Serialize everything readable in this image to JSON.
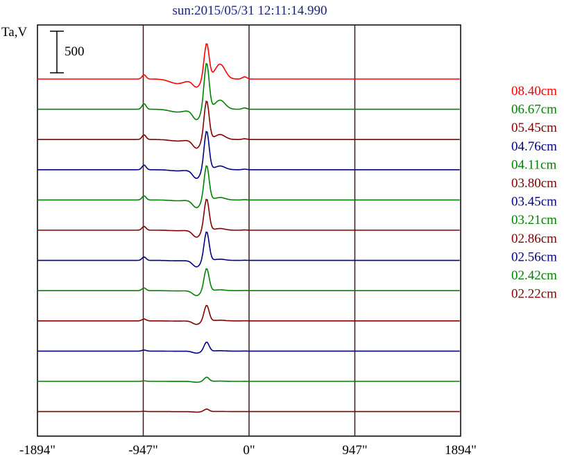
{
  "chart_data": {
    "type": "line",
    "title": "sun:2015/05/31 12:11:14.990",
    "ylabel": "Ta,V",
    "xlabel": "",
    "xlim": [
      -1894,
      1894
    ],
    "xticks": [
      {
        "value": -1894,
        "label": "-1894\""
      },
      {
        "value": -947,
        "label": "-947\""
      },
      {
        "value": 0,
        "label": "0\""
      },
      {
        "value": 947,
        "label": "947\""
      },
      {
        "value": 1894,
        "label": "1894\""
      }
    ],
    "vertical_lines": [
      -947,
      0,
      947
    ],
    "scale_bar": {
      "value": 500,
      "label": "500"
    },
    "series": [
      {
        "name": "08.40cm",
        "color": "#ff0000",
        "peak": 430,
        "bump": 180
      },
      {
        "name": "06.67cm",
        "color": "#008000",
        "peak": 560,
        "bump": 110
      },
      {
        "name": "05.45cm",
        "color": "#800000",
        "peak": 470,
        "bump": 60
      },
      {
        "name": "04.76cm",
        "color": "#000080",
        "peak": 470,
        "bump": 45
      },
      {
        "name": "04.11cm",
        "color": "#008000",
        "peak": 420,
        "bump": 30
      },
      {
        "name": "03.80cm",
        "color": "#800000",
        "peak": 380,
        "bump": 20
      },
      {
        "name": "03.45cm",
        "color": "#000080",
        "peak": 350,
        "bump": 15
      },
      {
        "name": "03.21cm",
        "color": "#008000",
        "peak": 270,
        "bump": 10
      },
      {
        "name": "02.86cm",
        "color": "#800000",
        "peak": 190,
        "bump": 8
      },
      {
        "name": "02.56cm",
        "color": "#000080",
        "peak": 110,
        "bump": 5
      },
      {
        "name": "02.42cm",
        "color": "#008000",
        "peak": 50,
        "bump": 3
      },
      {
        "name": "02.22cm",
        "color": "#800000",
        "peak": 30,
        "bump": 2
      }
    ]
  }
}
